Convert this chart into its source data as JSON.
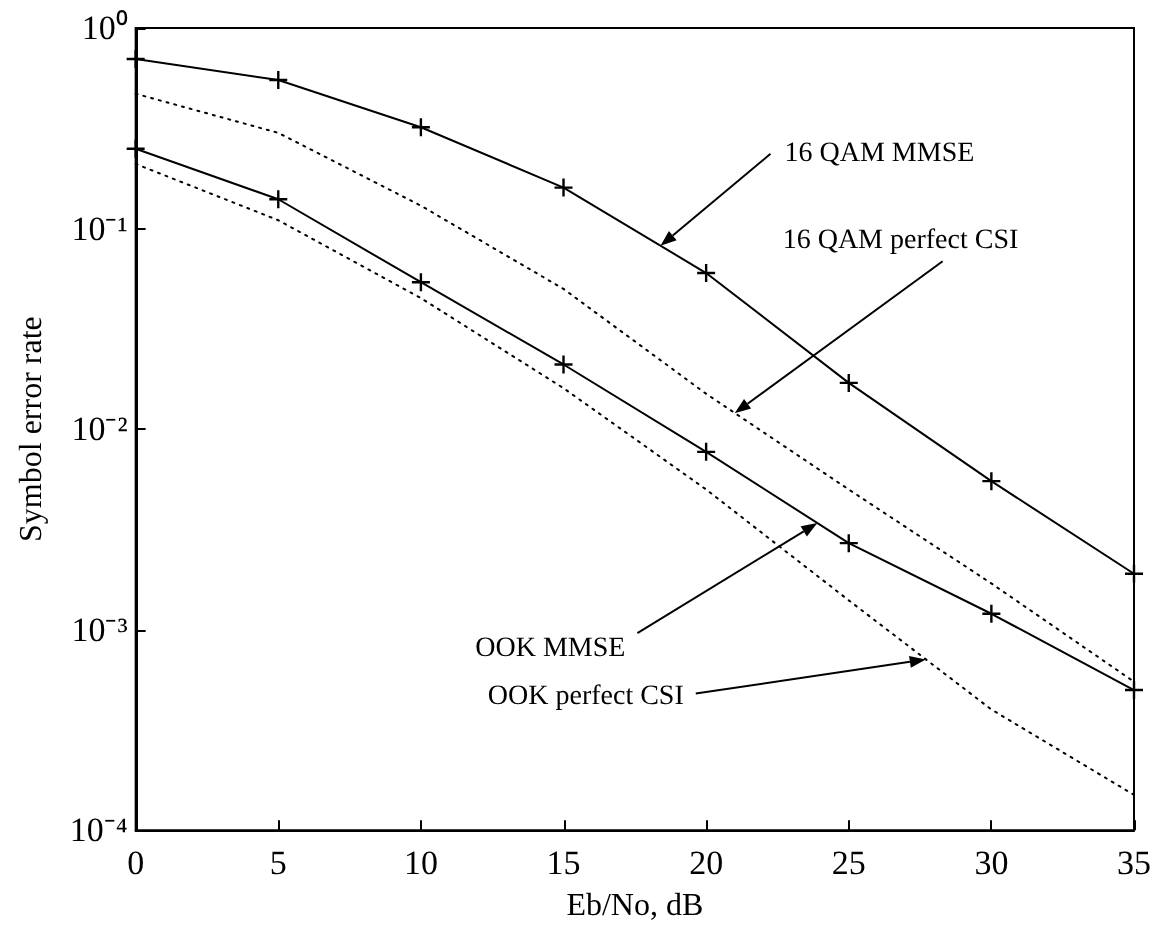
{
  "chart_data": {
    "type": "line",
    "xlabel": "Eb/No, dB",
    "ylabel": "Symbol error rate",
    "x": [
      0,
      5,
      10,
      15,
      20,
      25,
      30,
      35
    ],
    "series": [
      {
        "color": "#000000",
        "marker": "cross",
        "line_style": "solid",
        "values": [
          0.7,
          0.55,
          0.32,
          0.16,
          0.06,
          0.017,
          0.0055,
          0.0019
        ]
      },
      {
        "color": "#000000",
        "marker": "none",
        "line_style": "dotted",
        "values": [
          0.47,
          0.3,
          0.13,
          0.05,
          0.015,
          0.005,
          0.0017,
          0.00055
        ]
      },
      {
        "color": "#000000",
        "marker": "cross",
        "line_style": "solid",
        "values": [
          0.25,
          0.14,
          0.054,
          0.021,
          0.0077,
          0.0027,
          0.0012,
          0.0005
        ]
      },
      {
        "color": "#000000",
        "marker": "none",
        "line_style": "dotted",
        "values": [
          0.21,
          0.11,
          0.045,
          0.016,
          0.005,
          0.0014,
          0.0004,
          0.00015
        ]
      }
    ],
    "annotations": [
      {
        "text": "16 QAM MMSE",
        "x": 18.4,
        "y": 0.082
      },
      {
        "text": "16 QAM perfect CSI",
        "x": 21,
        "y": 0.012
      },
      {
        "text": "OOK MMSE",
        "x": 23.9,
        "y": 0.0034
      },
      {
        "text": "OOK perfect CSI",
        "x": 27.7,
        "y": 0.00071
      }
    ],
    "log": "y",
    "grid": false,
    "xlim": [
      0,
      35
    ],
    "xticks": [
      0,
      5,
      10,
      15,
      20,
      25,
      30,
      35
    ],
    "ylim": [
      0.0001,
      1
    ],
    "yticks": [
      {
        "value": 0.0001,
        "label": "10⁻⁴"
      },
      {
        "value": 0.001,
        "label": "10⁻³"
      },
      {
        "value": 0.01,
        "label": "10⁻²"
      },
      {
        "value": 0.1,
        "label": "10⁻¹"
      },
      {
        "value": 1,
        "label": "10⁰"
      }
    ]
  }
}
